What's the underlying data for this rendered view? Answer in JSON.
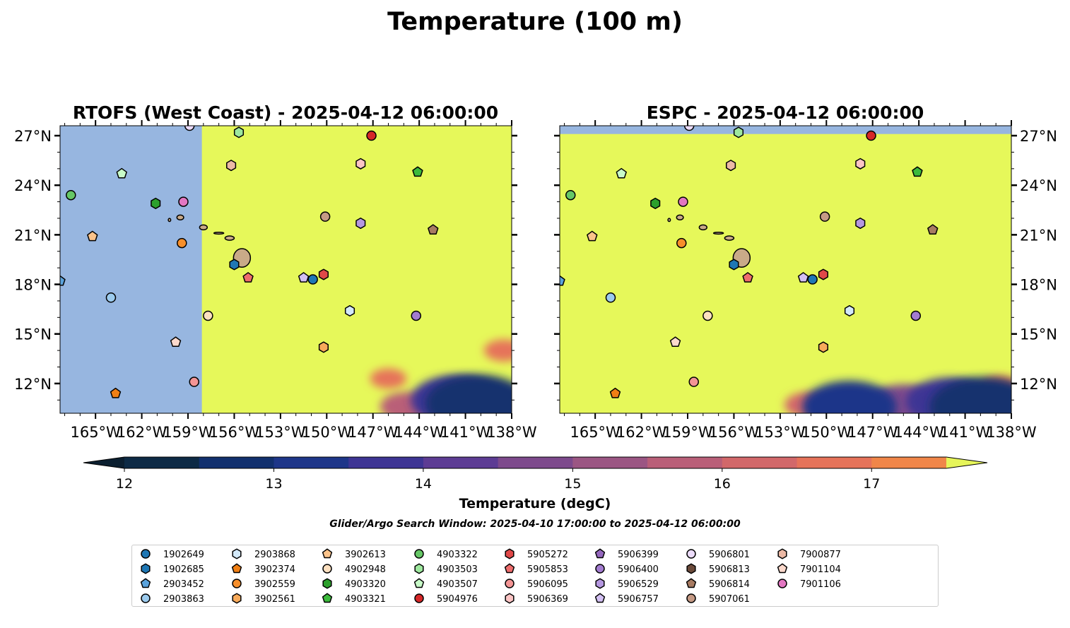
{
  "figure": {
    "suptitle": "Temperature (100 m)",
    "search_window": "Glider/Argo Search Window: 2025-04-10 17:00:00 to 2025-04-12 06:00:00"
  },
  "chart_data": [
    {
      "type": "heatmap",
      "panel": "left",
      "title": "RTOFS (West Coast) - 2025-04-12 06:00:00",
      "xlim": [
        -167.3,
        -138
      ],
      "ylim": [
        10.2,
        27.6
      ],
      "x_ticks": [
        -165,
        -162,
        -159,
        -156,
        -153,
        -150,
        -147,
        -144,
        -141,
        -138
      ],
      "x_tick_labels": [
        "165°W",
        "162°W",
        "159°W",
        "156°W",
        "153°W",
        "150°W",
        "147°W",
        "144°W",
        "141°W",
        "138°W"
      ],
      "y_ticks": [
        12,
        15,
        18,
        21,
        24,
        27
      ],
      "y_tick_labels": [
        "12°N",
        "15°N",
        "18°N",
        "21°N",
        "24°N",
        "27°N"
      ],
      "y_axis_side": "left",
      "no_data_west_of_lon": -158.1,
      "background_value": "> 17.5",
      "cold_patches": [
        {
          "lon": -140.2,
          "lat": 10.8,
          "value": 12.8
        },
        {
          "lon": -141.6,
          "lat": 11.0,
          "value": 13.6
        },
        {
          "lon": -144.8,
          "lat": 10.6,
          "value": 15.8
        },
        {
          "lon": -138.5,
          "lat": 14.0,
          "value": 16.6
        },
        {
          "lon": -146.0,
          "lat": 12.3,
          "value": 16.8
        }
      ]
    },
    {
      "type": "heatmap",
      "panel": "right",
      "title": "ESPC - 2025-04-12 06:00:00",
      "xlim": [
        -167.3,
        -138
      ],
      "ylim": [
        10.2,
        27.6
      ],
      "x_ticks": [
        -165,
        -162,
        -159,
        -156,
        -153,
        -150,
        -147,
        -144,
        -141,
        -138
      ],
      "x_tick_labels": [
        "165°W",
        "162°W",
        "159°W",
        "156°W",
        "153°W",
        "150°W",
        "147°W",
        "144°W",
        "141°W",
        "138°W"
      ],
      "y_ticks": [
        12,
        15,
        18,
        21,
        24,
        27
      ],
      "y_tick_labels": [
        "12°N",
        "15°N",
        "18°N",
        "21°N",
        "24°N",
        "27°N"
      ],
      "y_axis_side": "right",
      "no_data_north_of_lat": 27.1,
      "background_value": "> 17.5",
      "cold_patches": [
        {
          "lon": -139.8,
          "lat": 10.6,
          "value": 12.6
        },
        {
          "lon": -148.5,
          "lat": 10.6,
          "value": 13.4
        },
        {
          "lon": -142.0,
          "lat": 10.9,
          "value": 13.8
        },
        {
          "lon": -145.0,
          "lat": 10.8,
          "value": 14.9
        },
        {
          "lon": -151.2,
          "lat": 10.7,
          "value": 16.2
        },
        {
          "lon": -138.7,
          "lat": 11.8,
          "value": 16.6
        }
      ]
    }
  ],
  "colorbar": {
    "label": "Temperature (degC)",
    "min": 12,
    "max": 17.5,
    "step": 0.5,
    "ticks": [
      "12",
      "13",
      "14",
      "15",
      "16",
      "17"
    ],
    "extend": "both",
    "colors": [
      "#0d2a45",
      "#12306e",
      "#1e3689",
      "#3e3594",
      "#5d3c94",
      "#7d4a8c",
      "#9b5683",
      "#b95f78",
      "#d2686a",
      "#e6735a",
      "#f08649",
      "#f7a23f",
      "#f7c743"
    ],
    "under_color": "#0b1f30",
    "over_color": "#e6f55a"
  },
  "map_colors": {
    "no_data": "#97b6e0",
    "warm": "#e6f85a",
    "land": "#c9aa88",
    "coast": "#000000"
  },
  "islands": [
    {
      "name": "Hawaii",
      "lon": -155.5,
      "lat": 19.6,
      "rx": 0.55,
      "ry": 0.6
    },
    {
      "name": "Maui",
      "lon": -156.3,
      "lat": 20.8,
      "rx": 0.3,
      "ry": 0.14
    },
    {
      "name": "Molokai",
      "lon": -157.0,
      "lat": 21.1,
      "rx": 0.32,
      "ry": 0.06
    },
    {
      "name": "Oahu",
      "lon": -158.0,
      "lat": 21.45,
      "rx": 0.25,
      "ry": 0.16
    },
    {
      "name": "Kauai",
      "lon": -159.5,
      "lat": 22.05,
      "rx": 0.22,
      "ry": 0.16
    },
    {
      "name": "Niihau",
      "lon": -160.2,
      "lat": 21.9,
      "rx": 0.08,
      "ry": 0.1
    }
  ],
  "floats": [
    {
      "id": "1902649",
      "marker": "circle",
      "color": "#1f77b4",
      "lon": -150.9,
      "lat": 18.3
    },
    {
      "id": "1902685",
      "marker": "hexagon",
      "color": "#1f77b4",
      "lon": -156.0,
      "lat": 19.2
    },
    {
      "id": "2903452",
      "marker": "pentagon",
      "color": "#5ba3dc",
      "lon": -167.3,
      "lat": 18.2
    },
    {
      "id": "2903863",
      "marker": "circle",
      "color": "#9ccbee",
      "lon": -164.0,
      "lat": 17.2
    },
    {
      "id": "2903868",
      "marker": "hexagon",
      "color": "#d3e9fa",
      "lon": -148.5,
      "lat": 16.4
    },
    {
      "id": "3902374",
      "marker": "pentagon",
      "color": "#f07f14",
      "lon": -163.7,
      "lat": 11.4
    },
    {
      "id": "3902559",
      "marker": "circle",
      "color": "#f78f2b",
      "lon": -159.4,
      "lat": 20.5
    },
    {
      "id": "3902561",
      "marker": "hexagon",
      "color": "#f8aa5a",
      "lon": -150.2,
      "lat": 14.2
    },
    {
      "id": "3902613",
      "marker": "pentagon",
      "color": "#fbc38a",
      "lon": -165.2,
      "lat": 20.9
    },
    {
      "id": "4902948",
      "marker": "circle",
      "color": "#fde0c0",
      "lon": -157.7,
      "lat": 16.1
    },
    {
      "id": "4903320",
      "marker": "hexagon",
      "color": "#2ca02c",
      "lon": -161.1,
      "lat": 22.9
    },
    {
      "id": "4903321",
      "marker": "pentagon",
      "color": "#3cba3c",
      "lon": -144.1,
      "lat": 24.8
    },
    {
      "id": "4903322",
      "marker": "circle",
      "color": "#66c766",
      "lon": -166.6,
      "lat": 23.4
    },
    {
      "id": "4903503",
      "marker": "hexagon",
      "color": "#9ee89e",
      "lon": -155.7,
      "lat": 27.2
    },
    {
      "id": "4903507",
      "marker": "pentagon",
      "color": "#c8fbc8",
      "lon": -163.3,
      "lat": 24.7
    },
    {
      "id": "5904976",
      "marker": "circle",
      "color": "#d62728",
      "lon": -147.1,
      "lat": 27.0
    },
    {
      "id": "5905272",
      "marker": "hexagon",
      "color": "#e04848",
      "lon": -150.2,
      "lat": 18.6
    },
    {
      "id": "5905853",
      "marker": "pentagon",
      "color": "#ee6d6d",
      "lon": -155.1,
      "lat": 18.4
    },
    {
      "id": "5906095",
      "marker": "circle",
      "color": "#f49595",
      "lon": -158.6,
      "lat": 12.1
    },
    {
      "id": "5906369",
      "marker": "hexagon",
      "color": "#fcc5c5",
      "lon": -147.8,
      "lat": 25.3
    },
    {
      "id": "5906399",
      "marker": "pentagon",
      "color": "#9467bd",
      "lon": null,
      "lat": null
    },
    {
      "id": "5906400",
      "marker": "circle",
      "color": "#a37cd0",
      "lon": -144.2,
      "lat": 16.1
    },
    {
      "id": "5906529",
      "marker": "hexagon",
      "color": "#b597e0",
      "lon": -147.8,
      "lat": 21.7
    },
    {
      "id": "5906757",
      "marker": "pentagon",
      "color": "#d3c0f3",
      "lon": -151.5,
      "lat": 18.4
    },
    {
      "id": "5906801",
      "marker": "circle",
      "color": "#ecdcfb",
      "lon": -158.9,
      "lat": 27.6
    },
    {
      "id": "5906813",
      "marker": "hexagon",
      "color": "#6b4a3a",
      "lon": null,
      "lat": null
    },
    {
      "id": "5906814",
      "marker": "pentagon",
      "color": "#a87b62",
      "lon": -143.1,
      "lat": 21.3
    },
    {
      "id": "5907061",
      "marker": "circle",
      "color": "#c59a85",
      "lon": -150.1,
      "lat": 22.1
    },
    {
      "id": "7900877",
      "marker": "hexagon",
      "color": "#ecb9a5",
      "lon": -156.2,
      "lat": 25.2
    },
    {
      "id": "7901104",
      "marker": "pentagon",
      "color": "#fcd9cc",
      "lon": -159.8,
      "lat": 14.5
    },
    {
      "id": "7901106",
      "marker": "circle",
      "color": "#e377c2",
      "lon": -159.3,
      "lat": 23.0
    }
  ]
}
